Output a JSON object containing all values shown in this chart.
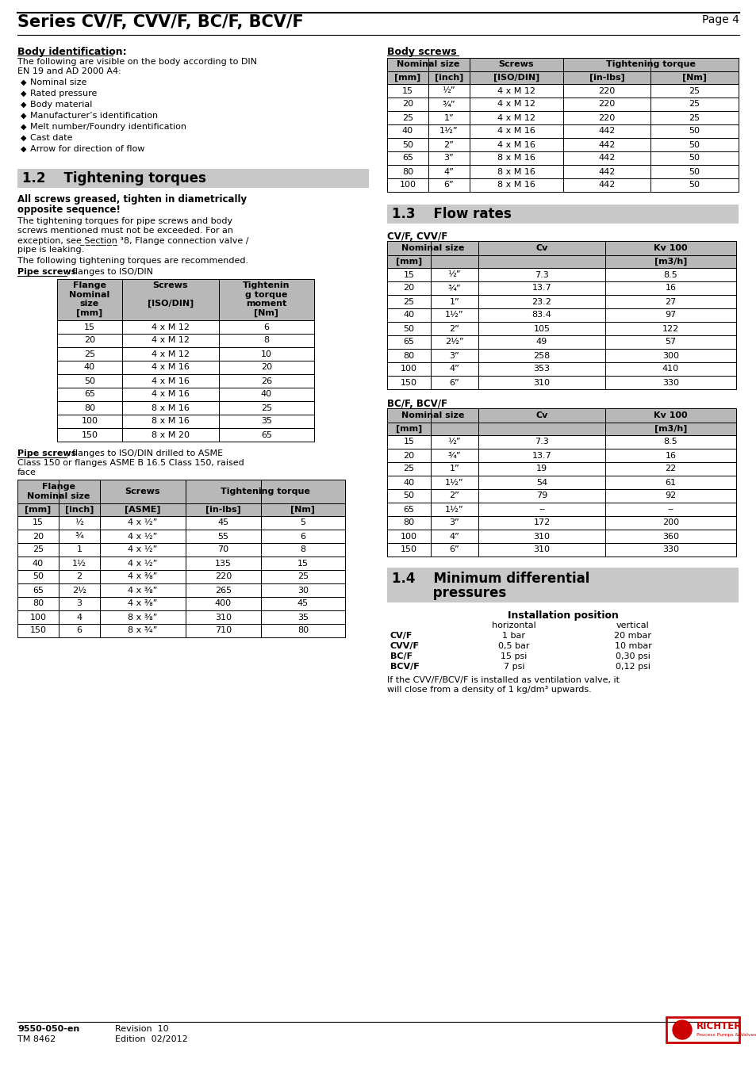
{
  "page_title": "Series CV/F, CVV/F, BC/F, BCV/F",
  "page_num": "Page 4",
  "bg_color": "#ffffff",
  "body_id_title": "Body identification:",
  "body_id_text1": "The following are visible on the body according to DIN",
  "body_id_text2": "EN 19 and AD 2000 A4:",
  "body_id_bullets": [
    "Nominal size",
    "Rated pressure",
    "Body material",
    "Manufacturer’s identification",
    "Melt number/Foundry identification",
    "Cast date",
    "Arrow for direction of flow"
  ],
  "body_screws_title": "Body screws",
  "body_screws_rows": [
    [
      "15",
      "½”",
      "4 x M 12",
      "220",
      "25"
    ],
    [
      "20",
      "¾”",
      "4 x M 12",
      "220",
      "25"
    ],
    [
      "25",
      "1”",
      "4 x M 12",
      "220",
      "25"
    ],
    [
      "40",
      "1½”",
      "4 x M 16",
      "442",
      "50"
    ],
    [
      "50",
      "2”",
      "4 x M 16",
      "442",
      "50"
    ],
    [
      "65",
      "3”",
      "8 x M 16",
      "442",
      "50"
    ],
    [
      "80",
      "4”",
      "8 x M 16",
      "442",
      "50"
    ],
    [
      "100",
      "6”",
      "8 x M 16",
      "442",
      "50"
    ]
  ],
  "section_12_title": "1.2    Tightening torques",
  "tighten_bold1": "All screws greased, tighten in diametrically",
  "tighten_bold2": "opposite sequence!",
  "tighten_text": [
    "The tightening torques for pipe screws and body",
    "screws mentioned must not be exceeded. For an",
    "exception, see ̲S̲e̲c̲t̲i̲o̲n̲ ̸̲, Flange connection valve /",
    "pipe is leaking.",
    "The following tightening torques are recommended."
  ],
  "pipe_iso_label1": "Pipe screws",
  "pipe_iso_label2": ", flanges to ISO/DIN",
  "pipe_screws_iso_rows": [
    [
      "15",
      "4 x M 12",
      "6"
    ],
    [
      "20",
      "4 x M 12",
      "8"
    ],
    [
      "25",
      "4 x M 12",
      "10"
    ],
    [
      "40",
      "4 x M 16",
      "20"
    ],
    [
      "50",
      "4 x M 16",
      "26"
    ],
    [
      "65",
      "4 x M 16",
      "40"
    ],
    [
      "80",
      "8 x M 16",
      "25"
    ],
    [
      "100",
      "8 x M 16",
      "35"
    ],
    [
      "150",
      "8 x M 20",
      "65"
    ]
  ],
  "pipe_asme_label1": "Pipe screws",
  "pipe_asme_label2": ", flanges to ISO/DIN drilled to ASME",
  "pipe_asme_label3": "Class 150 or flanges ASME B 16.5 Class 150, raised",
  "pipe_asme_label4": "face",
  "pipe_screws_asme_rows": [
    [
      "15",
      "½",
      "4 x ½”",
      "45",
      "5"
    ],
    [
      "20",
      "¾",
      "4 x ½”",
      "55",
      "6"
    ],
    [
      "25",
      "1",
      "4 x ½”",
      "70",
      "8"
    ],
    [
      "40",
      "1½",
      "4 x ½”",
      "135",
      "15"
    ],
    [
      "50",
      "2",
      "4 x ⅜”",
      "220",
      "25"
    ],
    [
      "65",
      "2½",
      "4 x ⅜”",
      "265",
      "30"
    ],
    [
      "80",
      "3",
      "4 x ⅜”",
      "400",
      "45"
    ],
    [
      "100",
      "4",
      "8 x ⅜”",
      "310",
      "35"
    ],
    [
      "150",
      "6",
      "8 x ¾”",
      "710",
      "80"
    ]
  ],
  "section_13_title": "1.3    Flow rates",
  "cvf_title": "CV/F, CVV/F",
  "cvf_rows": [
    [
      "15",
      "½”",
      "7.3",
      "8.5"
    ],
    [
      "20",
      "¾”",
      "13.7",
      "16"
    ],
    [
      "25",
      "1”",
      "23.2",
      "27"
    ],
    [
      "40",
      "1½”",
      "83.4",
      "97"
    ],
    [
      "50",
      "2”",
      "105",
      "122"
    ],
    [
      "65",
      "2½”",
      "49",
      "57"
    ],
    [
      "80",
      "3”",
      "258",
      "300"
    ],
    [
      "100",
      "4”",
      "353",
      "410"
    ],
    [
      "150",
      "6”",
      "310",
      "330"
    ]
  ],
  "bcf_title": "BC/F, BCV/F",
  "bcf_rows": [
    [
      "15",
      "½”",
      "7.3",
      "8.5"
    ],
    [
      "20",
      "¾”",
      "13.7",
      "16"
    ],
    [
      "25",
      "1”",
      "19",
      "22"
    ],
    [
      "40",
      "1½”",
      "54",
      "61"
    ],
    [
      "50",
      "2”",
      "79",
      "92"
    ],
    [
      "65",
      "1½”",
      "--",
      "--"
    ],
    [
      "80",
      "3”",
      "172",
      "200"
    ],
    [
      "100",
      "4”",
      "310",
      "360"
    ],
    [
      "150",
      "6”",
      "310",
      "330"
    ]
  ],
  "section_14_title1": "1.4    Minimum differential",
  "section_14_title2": "         pressures",
  "min_diff_rows": [
    [
      "CV/F",
      "1 bar",
      "20 mbar"
    ],
    [
      "CVV/F",
      "0,5 bar",
      "10 mbar"
    ],
    [
      "BC/F",
      "15 psi",
      "0,30 psi"
    ],
    [
      "BCV/F",
      "7 psi",
      "0,12 psi"
    ]
  ],
  "min_diff_note1": "If the CVV/F/BCV/F is installed as ventilation valve, it",
  "min_diff_note2": "will close from a density of 1 kg/dm³ upwards.",
  "footer_code": "9550-050-en",
  "footer_tm": "TM 8462",
  "footer_rev": "Revision  10",
  "footer_ed": "Edition  02/2012",
  "gray_header": "#c8c8c8",
  "gray_table_hdr": "#b8b8b8",
  "black": "#000000",
  "white": "#ffffff"
}
